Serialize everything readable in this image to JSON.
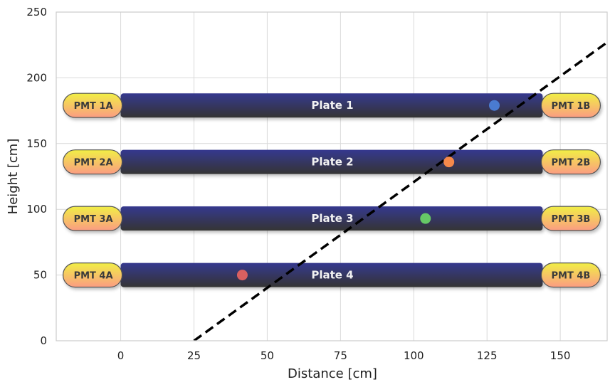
{
  "chart_data": {
    "type": "scatter",
    "title": "",
    "xlabel": "Distance [cm]",
    "ylabel": "Height [cm]",
    "xlim": [
      -22,
      166
    ],
    "ylim": [
      0,
      250
    ],
    "xticks": [
      0,
      25,
      50,
      75,
      100,
      125,
      150
    ],
    "yticks": [
      0,
      50,
      100,
      150,
      200,
      250
    ],
    "grid": true,
    "colors": {
      "plate_top": "#35398f",
      "plate_bottom": "#343434",
      "pmt_top": "#f1ef45",
      "pmt_bottom": "#fb9c82",
      "grid": "#d9d9d9",
      "line": "#000000"
    },
    "plates": [
      {
        "label": "Plate 1",
        "y": 179,
        "x_start": 0,
        "x_end": 144,
        "pmt_left": "PMT 1A",
        "pmt_right": "PMT 1B"
      },
      {
        "label": "Plate 2",
        "y": 136,
        "x_start": 0,
        "x_end": 144,
        "pmt_left": "PMT 2A",
        "pmt_right": "PMT 2B"
      },
      {
        "label": "Plate 3",
        "y": 93,
        "x_start": 0,
        "x_end": 144,
        "pmt_left": "PMT 3A",
        "pmt_right": "PMT 3B"
      },
      {
        "label": "Plate 4",
        "y": 50,
        "x_start": 0,
        "x_end": 144,
        "pmt_left": "PMT 4A",
        "pmt_right": "PMT 4B"
      }
    ],
    "points": [
      {
        "x": 127.5,
        "y": 179,
        "color": "#4a7bd0"
      },
      {
        "x": 112.0,
        "y": 136,
        "color": "#f5894b"
      },
      {
        "x": 104.0,
        "y": 93,
        "color": "#66c866"
      },
      {
        "x": 41.5,
        "y": 50,
        "color": "#d96060"
      }
    ],
    "track": {
      "x": [
        25,
        166
      ],
      "y": [
        0,
        227
      ],
      "style": "dashed",
      "color": "#000000"
    }
  }
}
